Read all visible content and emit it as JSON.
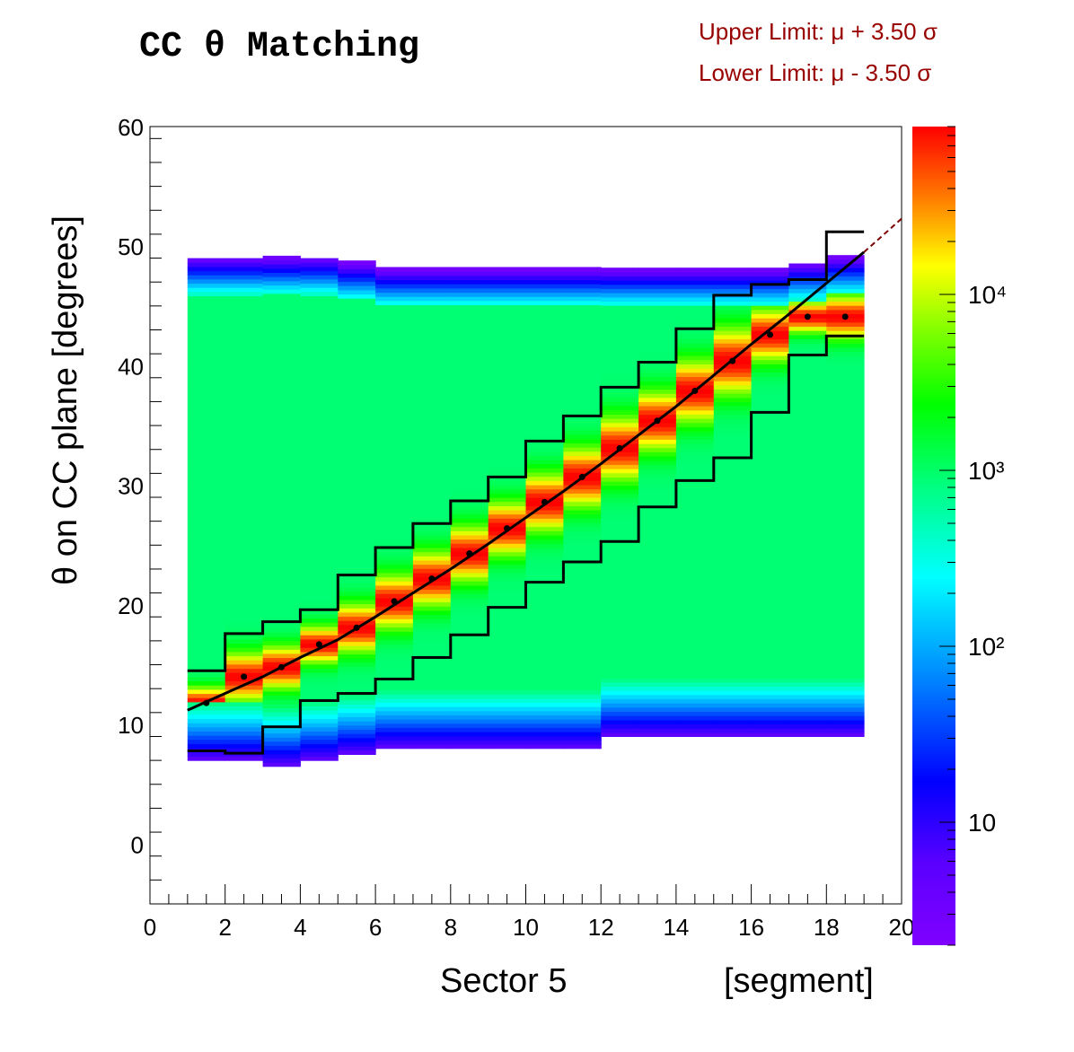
{
  "chart_data": {
    "type": "heatmap",
    "title": "CC θ Matching",
    "annotations": {
      "upper_limit": "Upper Limit:  μ + 3.50  σ",
      "lower_limit": "Lower Limit:  μ - 3.50  σ"
    },
    "xlabel": "Sector 5",
    "xunit": "[segment]",
    "ylabel": "θ on CC plane    [degrees]",
    "xlim": [
      0,
      20
    ],
    "ylim": [
      -5,
      60
    ],
    "x_ticks": [
      0,
      2,
      4,
      6,
      8,
      10,
      12,
      14,
      16,
      18,
      20
    ],
    "y_ticks": [
      0,
      10,
      20,
      30,
      40,
      50,
      60
    ],
    "colorbar": {
      "scale": "log",
      "range": [
        2,
        90000
      ],
      "tick_labels": [
        "10",
        "10²",
        "10³",
        "10⁴"
      ],
      "tick_values": [
        10,
        100,
        1000,
        10000
      ]
    },
    "segments": [
      1,
      2,
      3,
      4,
      5,
      6,
      7,
      8,
      9,
      10,
      11,
      12,
      13,
      14,
      15,
      16,
      17,
      18
    ],
    "band_range": [
      [
        7,
        49
      ],
      [
        7,
        49
      ],
      [
        6.5,
        49
      ],
      [
        7,
        49
      ],
      [
        7.5,
        48.5
      ],
      [
        8,
        48
      ],
      [
        8,
        48
      ],
      [
        8,
        48
      ],
      [
        8,
        48
      ],
      [
        8,
        48
      ],
      [
        8,
        48
      ],
      [
        9,
        48
      ],
      [
        9,
        48
      ],
      [
        9,
        48
      ],
      [
        9,
        48
      ],
      [
        9,
        48
      ],
      [
        9,
        48.5
      ],
      [
        9,
        49
      ]
    ],
    "mean_points": [
      [
        1.5,
        11.8
      ],
      [
        2.5,
        14.0
      ],
      [
        3.5,
        14.8
      ],
      [
        4.5,
        16.7
      ],
      [
        5.5,
        18.1
      ],
      [
        6.5,
        20.3
      ],
      [
        7.5,
        22.2
      ],
      [
        8.5,
        24.3
      ],
      [
        9.5,
        26.4
      ],
      [
        10.5,
        28.6
      ],
      [
        11.5,
        30.7
      ],
      [
        12.5,
        33.1
      ],
      [
        13.5,
        35.4
      ],
      [
        14.5,
        37.9
      ],
      [
        15.5,
        40.4
      ],
      [
        16.5,
        42.6
      ],
      [
        17.5,
        44.1
      ],
      [
        18.5,
        44.1
      ]
    ],
    "fit_curve": [
      [
        1,
        11.2
      ],
      [
        2,
        12.6
      ],
      [
        3,
        14.0
      ],
      [
        4,
        15.6
      ],
      [
        5,
        17.1
      ],
      [
        6,
        19.0
      ],
      [
        7,
        21.0
      ],
      [
        8,
        23.0
      ],
      [
        9,
        25.1
      ],
      [
        10,
        27.3
      ],
      [
        11,
        29.5
      ],
      [
        12,
        31.8
      ],
      [
        13,
        34.2
      ],
      [
        14,
        36.6
      ],
      [
        15,
        39.2
      ],
      [
        16,
        41.8
      ],
      [
        17,
        44.3
      ],
      [
        18,
        46.9
      ],
      [
        19,
        49.5
      ]
    ],
    "fit_extension": [
      [
        19,
        49.5
      ],
      [
        20,
        52.3
      ]
    ],
    "upper_limit": [
      14.5,
      17.6,
      18.6,
      19.6,
      22.5,
      24.8,
      26.8,
      28.7,
      30.7,
      33.7,
      35.8,
      38.2,
      40.3,
      43.1,
      45.9,
      46.8,
      47.2,
      51.2
    ],
    "lower_limit": [
      7.8,
      7.6,
      9.8,
      12.0,
      12.6,
      13.8,
      15.6,
      17.5,
      19.8,
      21.9,
      23.6,
      25.3,
      28.2,
      30.4,
      32.3,
      36.1,
      40.9,
      42.5
    ]
  }
}
